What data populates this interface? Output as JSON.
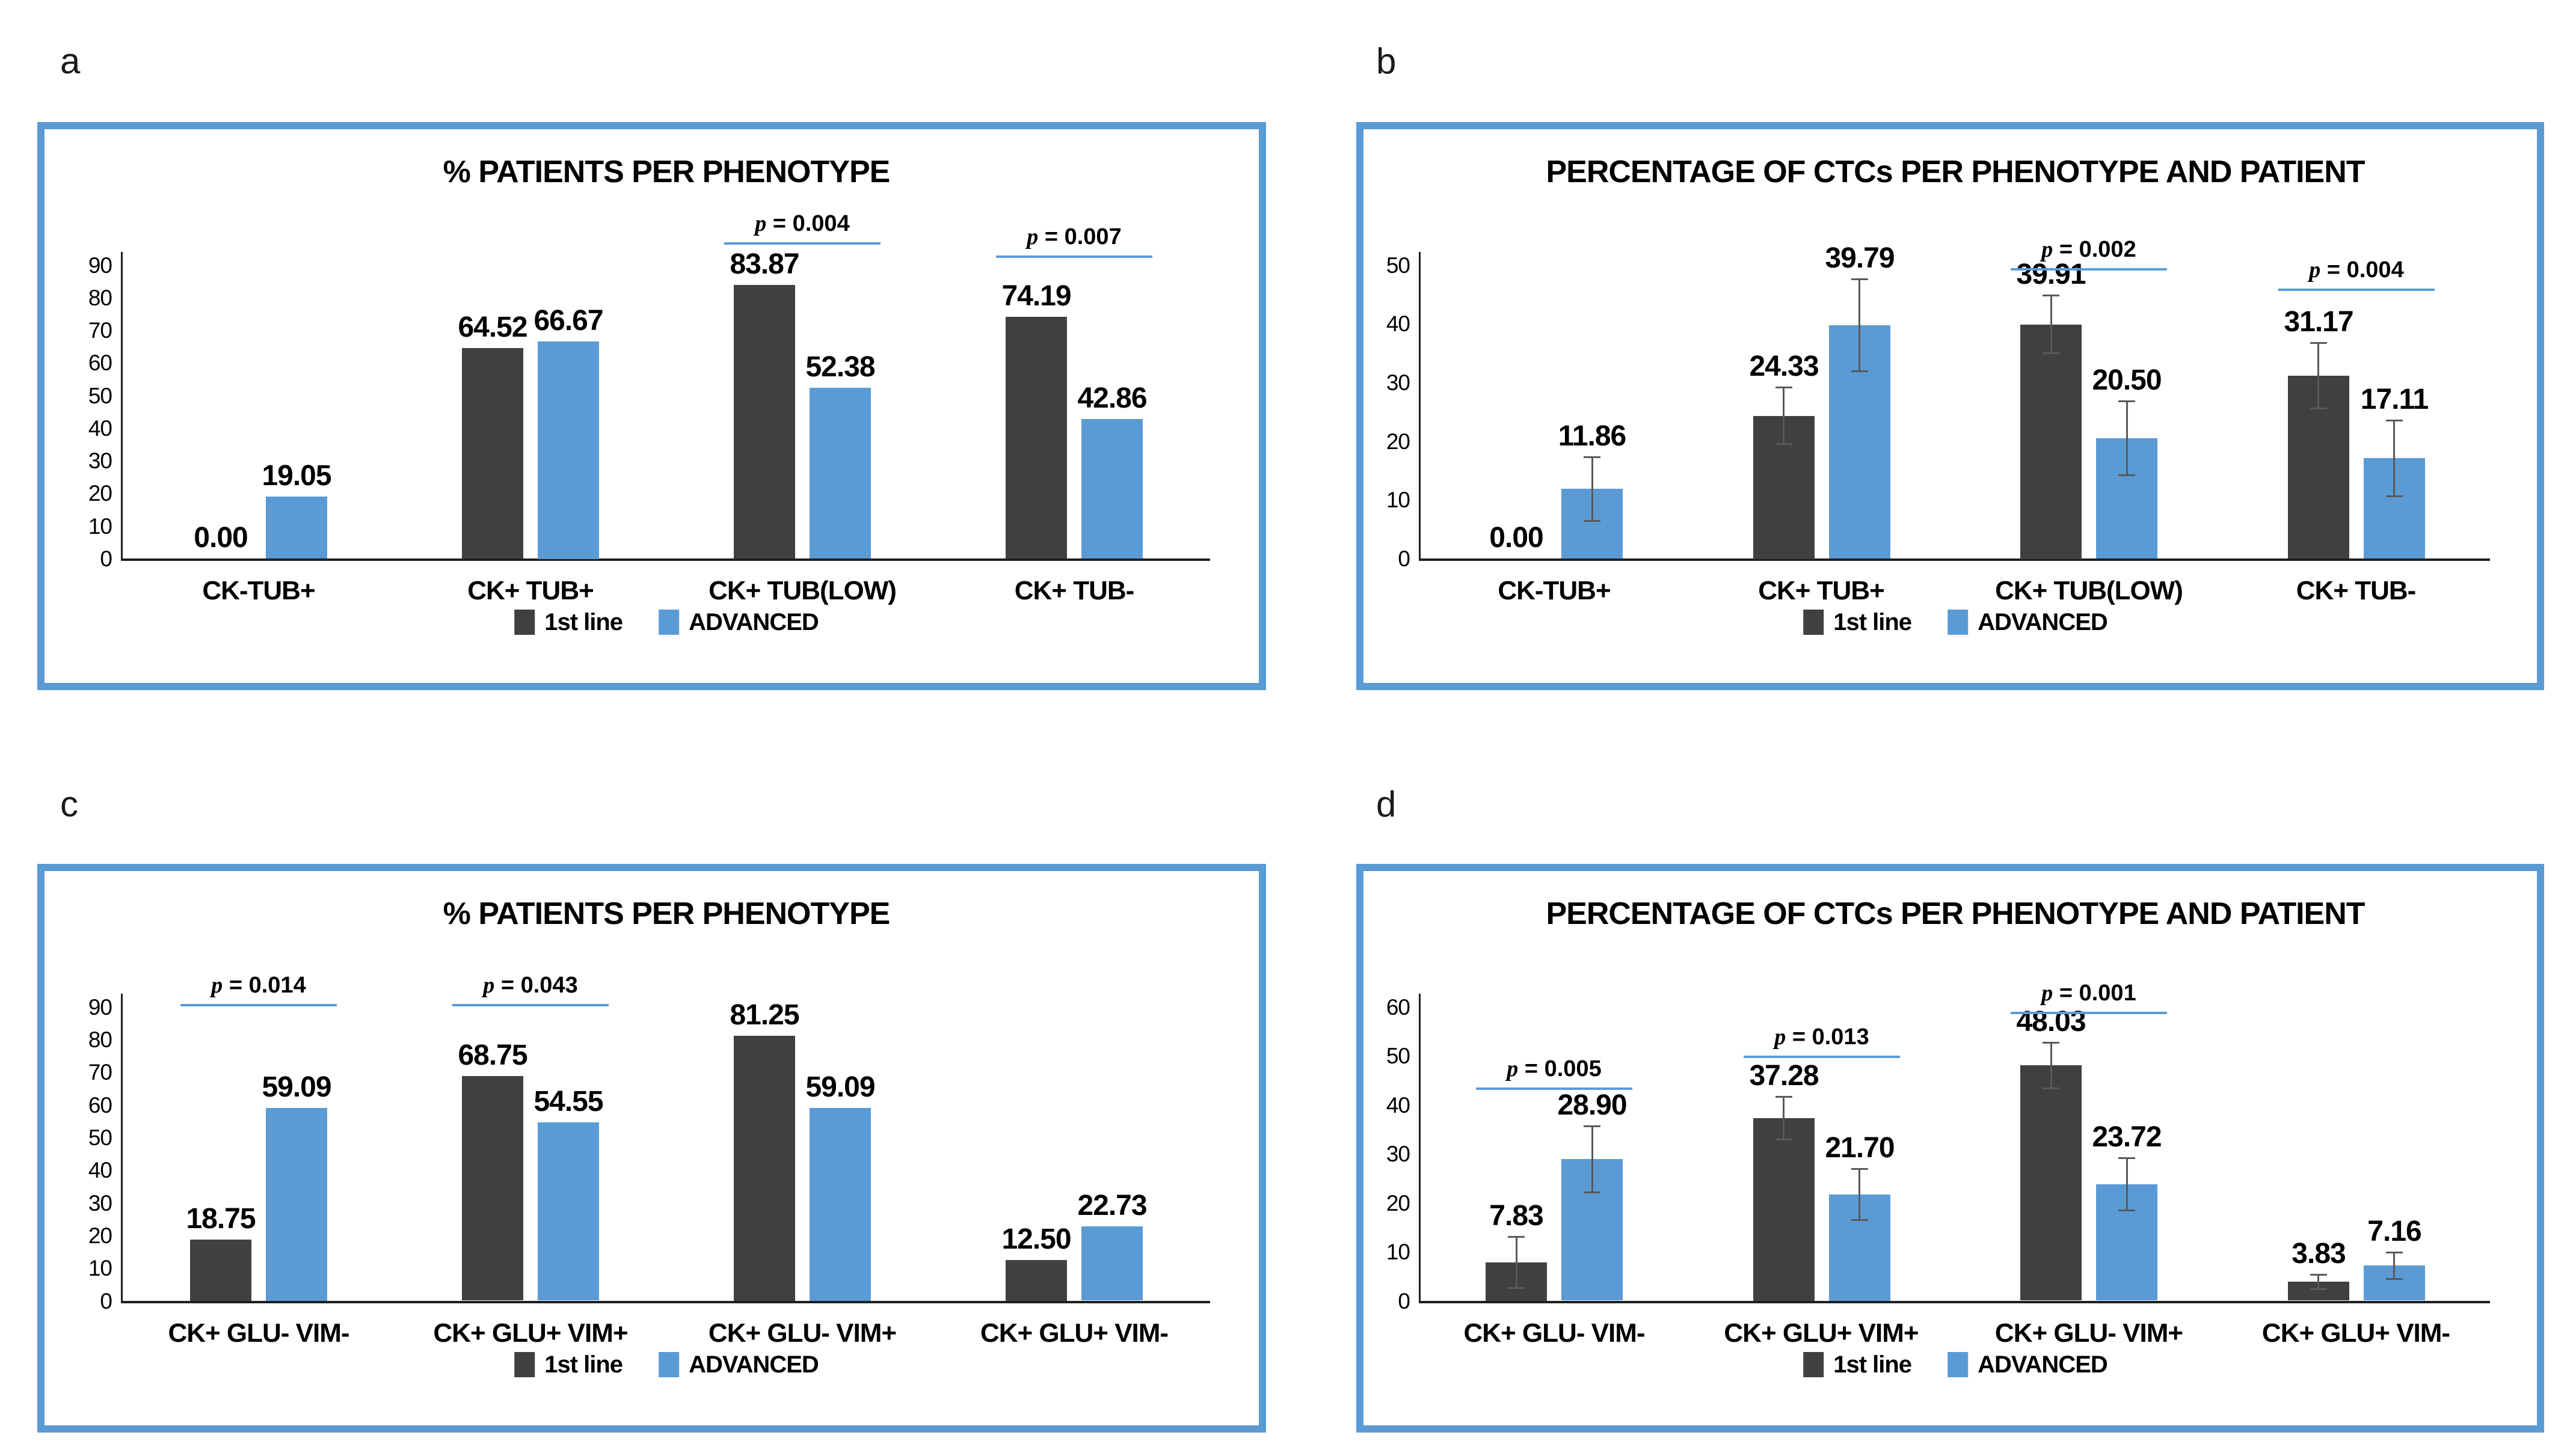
{
  "colors": {
    "bar_first_line": "#404040",
    "bar_advanced": "#5b9bd5",
    "panel_border": "#5b9bd5",
    "significance_line": "#5b9bd5",
    "error_bar": "#595959",
    "axis": "#1f1f1f",
    "text": "#000000",
    "background": "#ffffff"
  },
  "chart_data": [
    {
      "panel_label": "a",
      "type": "bar",
      "title": "% PATIENTS PER PHENOTYPE",
      "categories": [
        "CK-TUB+",
        "CK+ TUB+",
        "CK+ TUB(LOW)",
        "CK+ TUB-"
      ],
      "series": [
        {
          "name": "1st line",
          "color": "#404040",
          "values": [
            0,
            64.52,
            83.87,
            74.19
          ],
          "labels": [
            "0.00",
            "64.52",
            "83.87",
            "74.19"
          ],
          "errors": [
            0,
            0,
            0,
            0
          ]
        },
        {
          "name": "ADVANCED",
          "color": "#5b9bd5",
          "values": [
            19.05,
            66.67,
            52.38,
            42.86
          ],
          "labels": [
            "19.05",
            "66.67",
            "52.38",
            "42.86"
          ],
          "errors": [
            0,
            0,
            0,
            0
          ]
        }
      ],
      "ylim": [
        0,
        90
      ],
      "ytick_step": 10,
      "grid": false,
      "legend_position": "bottom",
      "annotations": [
        {
          "group_index": 2,
          "text": "p = 0.004",
          "line_y": 97
        },
        {
          "group_index": 3,
          "text": "p = 0.007",
          "line_y": 93
        }
      ]
    },
    {
      "panel_label": "b",
      "type": "bar",
      "title": "PERCENTAGE OF CTCs PER PHENOTYPE AND PATIENT",
      "categories": [
        "CK-TUB+",
        "CK+ TUB+",
        "CK+ TUB(LOW)",
        "CK+ TUB-"
      ],
      "series": [
        {
          "name": "1st line",
          "color": "#404040",
          "values": [
            0,
            24.33,
            39.91,
            31.17
          ],
          "labels": [
            "0.00",
            "24.33",
            "39.91",
            "31.17"
          ],
          "errors": [
            0,
            4.9,
            5.0,
            5.6
          ]
        },
        {
          "name": "ADVANCED",
          "color": "#5b9bd5",
          "values": [
            11.86,
            39.79,
            20.5,
            17.11
          ],
          "labels": [
            "11.86",
            "39.79",
            "20.50",
            "17.11"
          ],
          "errors": [
            5.5,
            7.9,
            6.3,
            6.5
          ]
        }
      ],
      "ylim": [
        0,
        50
      ],
      "ytick_step": 10,
      "grid": false,
      "legend_position": "bottom",
      "annotations": [
        {
          "group_index": 2,
          "text": "p = 0.002",
          "line_y": 49.5
        },
        {
          "group_index": 3,
          "text": "p = 0.004",
          "line_y": 46
        }
      ]
    },
    {
      "panel_label": "c",
      "type": "bar",
      "title": "% PATIENTS PER PHENOTYPE",
      "categories": [
        "CK+ GLU- VIM-",
        "CK+ GLU+ VIM+",
        "CK+ GLU- VIM+",
        "CK+ GLU+ VIM-"
      ],
      "series": [
        {
          "name": "1st line",
          "color": "#404040",
          "values": [
            18.75,
            68.75,
            81.25,
            12.5
          ],
          "labels": [
            "18.75",
            "68.75",
            "81.25",
            "12.50"
          ],
          "errors": [
            0,
            0,
            0,
            0
          ]
        },
        {
          "name": "ADVANCED",
          "color": "#5b9bd5",
          "values": [
            59.09,
            54.55,
            59.09,
            22.73
          ],
          "labels": [
            "59.09",
            "54.55",
            "59.09",
            "22.73"
          ],
          "errors": [
            0,
            0,
            0,
            0
          ]
        }
      ],
      "ylim": [
        0,
        90
      ],
      "ytick_step": 10,
      "grid": false,
      "legend_position": "bottom",
      "annotations": [
        {
          "group_index": 0,
          "text": "p = 0.014",
          "line_y": 91
        },
        {
          "group_index": 1,
          "text": "p = 0.043",
          "line_y": 91
        }
      ]
    },
    {
      "panel_label": "d",
      "type": "bar",
      "title": "PERCENTAGE OF CTCs PER PHENOTYPE AND PATIENT",
      "categories": [
        "CK+ GLU- VIM-",
        "CK+ GLU+ VIM+",
        "CK+ GLU- VIM+",
        "CK+ GLU+ VIM-"
      ],
      "series": [
        {
          "name": "1st line",
          "color": "#404040",
          "values": [
            7.83,
            37.28,
            48.03,
            3.83
          ],
          "labels": [
            "7.83",
            "37.28",
            "48.03",
            "3.83"
          ],
          "errors": [
            5.3,
            4.4,
            4.7,
            1.5
          ]
        },
        {
          "name": "ADVANCED",
          "color": "#5b9bd5",
          "values": [
            28.9,
            21.7,
            23.72,
            7.16
          ],
          "labels": [
            "28.90",
            "21.70",
            "23.72",
            "7.16"
          ],
          "errors": [
            6.8,
            5.3,
            5.4,
            2.8
          ]
        }
      ],
      "ylim": [
        0,
        60
      ],
      "ytick_step": 10,
      "grid": false,
      "legend_position": "bottom",
      "annotations": [
        {
          "group_index": 0,
          "text": "p = 0.005",
          "line_y": 43.5
        },
        {
          "group_index": 1,
          "text": "p = 0.013",
          "line_y": 50
        },
        {
          "group_index": 2,
          "text": "p = 0.001",
          "line_y": 59
        }
      ]
    }
  ]
}
